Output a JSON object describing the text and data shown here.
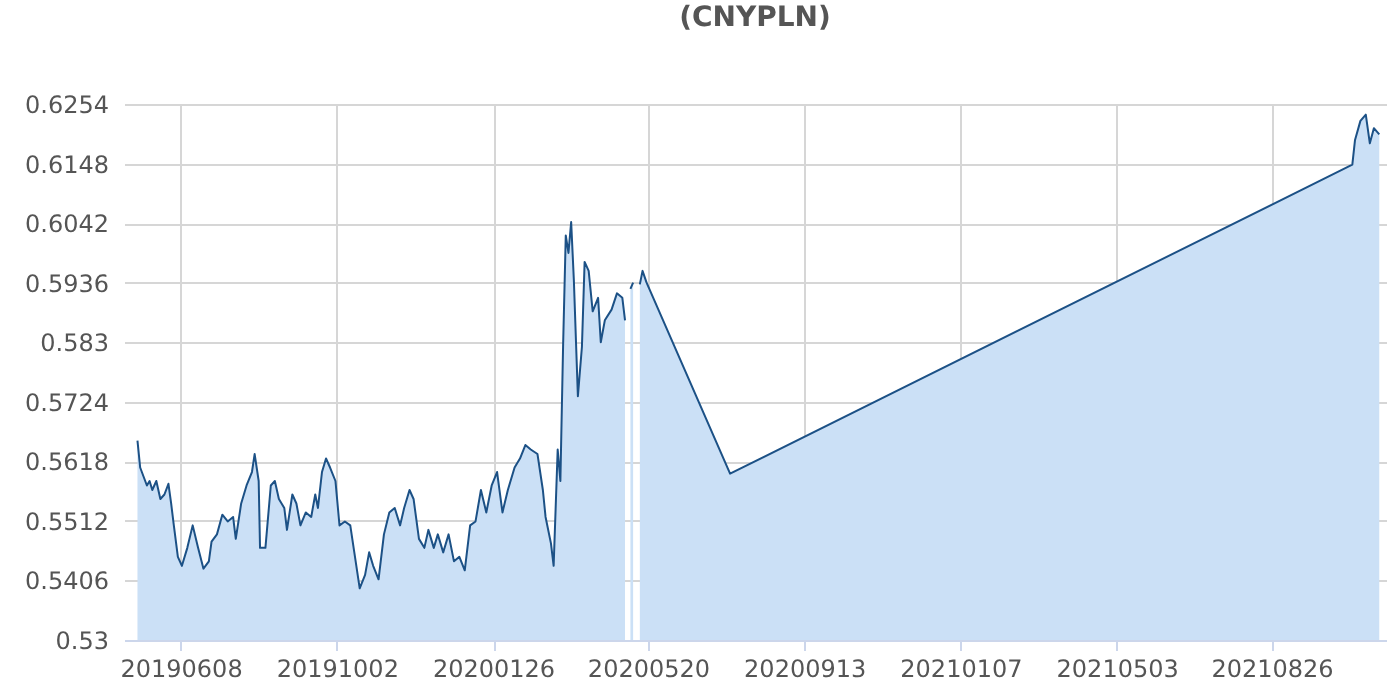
{
  "chart_data": {
    "type": "area",
    "title": "(CNYPLN)",
    "x": [
      "2019-05-07",
      "2019-05-09",
      "2019-05-14",
      "2019-05-16",
      "2019-05-18",
      "2019-05-21",
      "2019-05-24",
      "2019-05-27",
      "2019-05-30",
      "2019-06-01",
      "2019-06-03",
      "2019-06-06",
      "2019-06-09",
      "2019-06-13",
      "2019-06-17",
      "2019-06-21",
      "2019-06-25",
      "2019-06-29",
      "2019-07-01",
      "2019-07-05",
      "2019-07-09",
      "2019-07-13",
      "2019-07-17",
      "2019-07-19",
      "2019-07-23",
      "2019-07-27",
      "2019-07-31",
      "2019-08-02",
      "2019-08-05",
      "2019-08-06",
      "2019-08-10",
      "2019-08-14",
      "2019-08-17",
      "2019-08-20",
      "2019-08-24",
      "2019-08-26",
      "2019-08-30",
      "2019-09-02",
      "2019-09-05",
      "2019-09-09",
      "2019-09-13",
      "2019-09-16",
      "2019-09-18",
      "2019-09-21",
      "2019-09-24",
      "2019-09-27",
      "2019-10-01",
      "2019-10-04",
      "2019-10-08",
      "2019-10-12",
      "2019-10-15",
      "2019-10-19",
      "2019-10-23",
      "2019-10-26",
      "2019-10-29",
      "2019-11-02",
      "2019-11-06",
      "2019-11-10",
      "2019-11-14",
      "2019-11-18",
      "2019-11-21",
      "2019-11-25",
      "2019-11-28",
      "2019-12-02",
      "2019-12-06",
      "2019-12-09",
      "2019-12-13",
      "2019-12-16",
      "2019-12-20",
      "2019-12-24",
      "2019-12-28",
      "2020-01-01",
      "2020-01-05",
      "2020-01-09",
      "2020-01-13",
      "2020-01-17",
      "2020-01-21",
      "2020-01-25",
      "2020-01-29",
      "2020-02-02",
      "2020-02-06",
      "2020-02-11",
      "2020-02-15",
      "2020-02-19",
      "2020-02-23",
      "2020-02-28",
      "2020-03-03",
      "2020-03-05",
      "2020-03-09",
      "2020-03-11",
      "2020-03-14",
      "2020-03-16",
      "2020-03-18",
      "2020-03-20",
      "2020-03-22",
      "2020-03-24",
      "2020-03-26",
      "2020-03-29",
      "2020-04-01",
      "2020-04-03",
      "2020-04-06",
      "2020-04-09",
      "2020-04-13",
      "2020-04-15",
      "2020-04-18",
      "2020-04-23",
      "2020-04-27",
      "2020-05-01",
      "2020-05-03",
      "2020-05-05",
      "2020-05-07",
      "2020-05-09",
      "2020-05-11",
      "2020-05-14",
      "2020-05-16",
      "2020-05-19",
      "2020-07-20",
      "2021-10-25",
      "2021-10-27",
      "2021-10-31",
      "2021-11-04",
      "2021-11-07",
      "2021-11-10",
      "2021-11-14"
    ],
    "series": [
      {
        "color": "#1c5186",
        "values": [
          0.5655,
          0.5607,
          0.5575,
          0.5583,
          0.5567,
          0.5583,
          0.5551,
          0.5559,
          0.5578,
          0.5543,
          0.5504,
          0.5448,
          0.5432,
          0.5464,
          0.5504,
          0.5464,
          0.5427,
          0.544,
          0.5475,
          0.5488,
          0.5523,
          0.5511,
          0.5519,
          0.548,
          0.5543,
          0.5575,
          0.5599,
          0.5631,
          0.5583,
          0.5464,
          0.5464,
          0.5575,
          0.5583,
          0.5551,
          0.5535,
          0.5496,
          0.5559,
          0.5543,
          0.5504,
          0.5527,
          0.5519,
          0.5559,
          0.5535,
          0.5599,
          0.5623,
          0.5607,
          0.5583,
          0.5504,
          0.5511,
          0.5504,
          0.5456,
          0.5392,
          0.5416,
          0.5456,
          0.5432,
          0.5408,
          0.5488,
          0.5527,
          0.5535,
          0.5504,
          0.5535,
          0.5567,
          0.5551,
          0.548,
          0.5464,
          0.5496,
          0.5464,
          0.5488,
          0.5456,
          0.5488,
          0.544,
          0.5448,
          0.5424,
          0.5504,
          0.5511,
          0.5567,
          0.5527,
          0.5575,
          0.5599,
          0.5527,
          0.5567,
          0.5607,
          0.5623,
          0.5647,
          0.5639,
          0.5631,
          0.5567,
          0.5519,
          0.5472,
          0.5432,
          0.5639,
          0.5583,
          0.5822,
          0.602,
          0.5989,
          0.6044,
          0.5941,
          0.5734,
          0.5822,
          0.5973,
          0.5957,
          0.5885,
          0.5909,
          0.583,
          0.5869,
          0.5888,
          0.5917,
          0.5909,
          0.5869,
          null,
          0.5925,
          0.5936,
          null,
          0.5933,
          0.5957,
          0.5936,
          0.5596,
          0.6146,
          0.619,
          0.6224,
          0.6235,
          0.6184,
          0.6211,
          0.62
        ]
      }
    ],
    "xlim": [
      "2019-04-27",
      "2021-11-19"
    ],
    "xticks": [
      {
        "value": "2019-06-08",
        "label": "20190608"
      },
      {
        "value": "2019-10-02",
        "label": "20191002"
      },
      {
        "value": "2020-01-26",
        "label": "20200126"
      },
      {
        "value": "2020-05-20",
        "label": "20200520"
      },
      {
        "value": "2020-09-13",
        "label": "20200913"
      },
      {
        "value": "2021-01-07",
        "label": "20210107"
      },
      {
        "value": "2021-05-03",
        "label": "20210503"
      },
      {
        "value": "2021-08-26",
        "label": "20210826"
      }
    ],
    "ylim": [
      0.53,
      0.6254
    ],
    "yticks": [
      0.53,
      0.5406,
      0.5512,
      0.5618,
      0.5724,
      0.583,
      0.5936,
      0.6042,
      0.6148,
      0.6254
    ],
    "grid": true
  }
}
